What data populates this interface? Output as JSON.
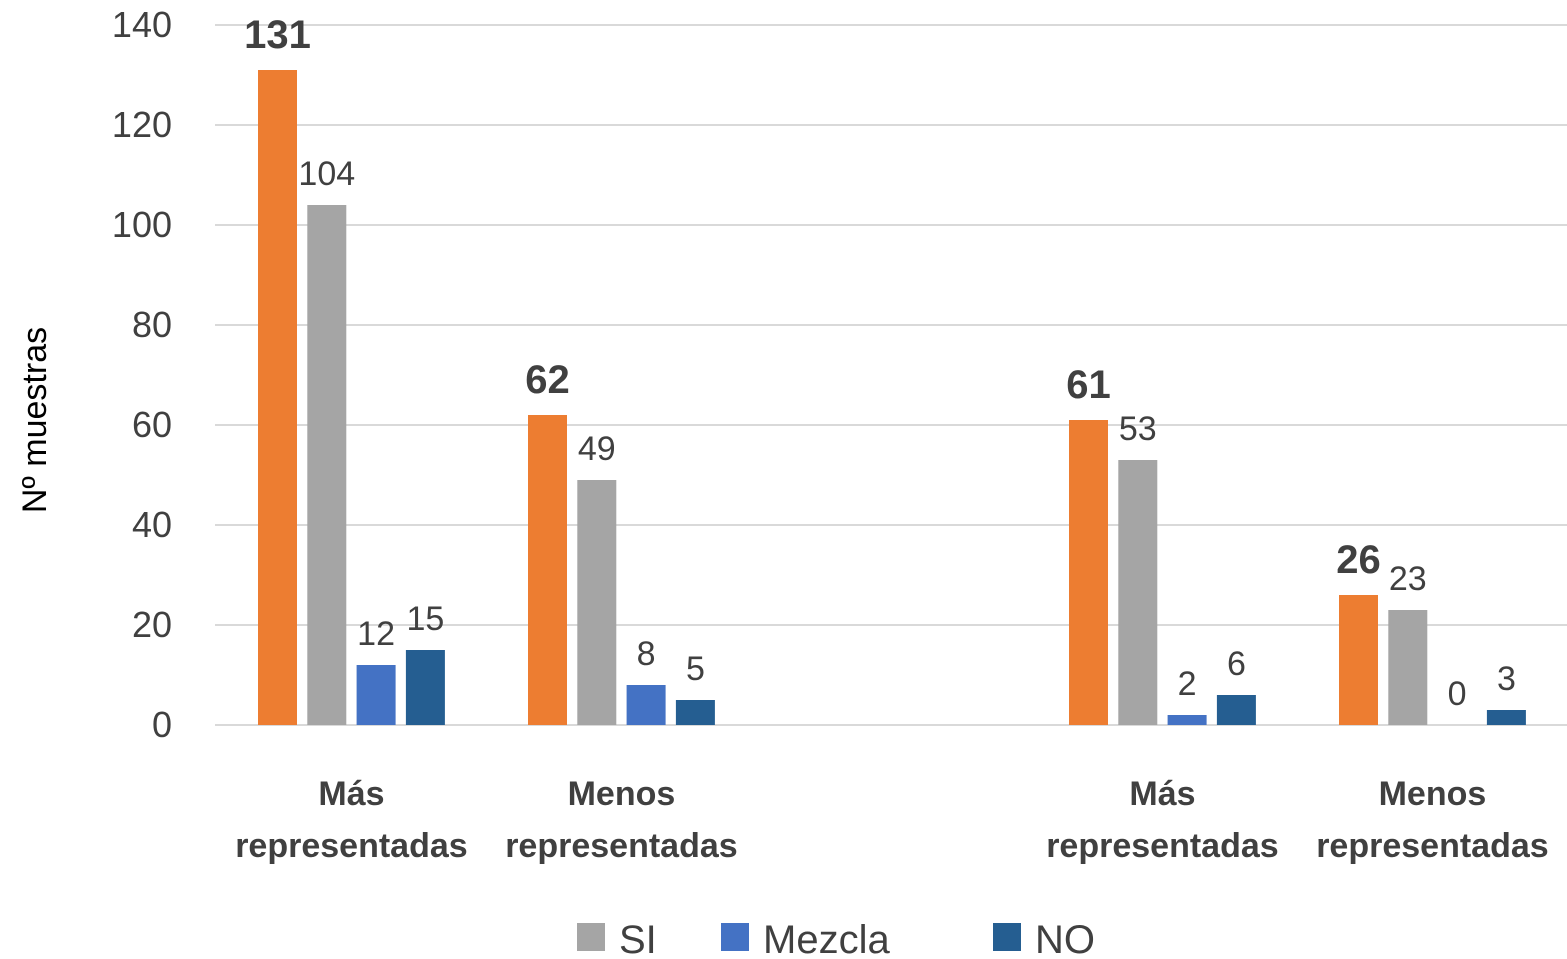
{
  "chart_data": {
    "type": "bar",
    "ylabel": "Nº muestras",
    "xlabel": "",
    "ylim": [
      0,
      140
    ],
    "yticks": [
      0,
      20,
      40,
      60,
      80,
      100,
      120,
      140
    ],
    "grid": true,
    "legend_position": "bottom",
    "groups": [
      {
        "label_lines": [
          "Más",
          "representadas"
        ]
      },
      {
        "label_lines": [
          "Menos",
          "representadas"
        ]
      },
      {
        "label_lines": [
          "Más",
          "representadas"
        ]
      },
      {
        "label_lines": [
          "Menos",
          "representadas"
        ]
      }
    ],
    "series": [
      {
        "name": "",
        "color": "#ED7D31",
        "bold_labels": true,
        "values": [
          131,
          62,
          61,
          26
        ]
      },
      {
        "name": "SI",
        "color": "#A5A5A5",
        "bold_labels": false,
        "values": [
          104,
          49,
          53,
          23
        ]
      },
      {
        "name": "Mezcla",
        "color": "#4472C4",
        "bold_labels": false,
        "values": [
          12,
          8,
          2,
          0
        ]
      },
      {
        "name": "NO",
        "color": "#255E91",
        "bold_labels": false,
        "values": [
          15,
          5,
          6,
          3
        ]
      }
    ]
  }
}
